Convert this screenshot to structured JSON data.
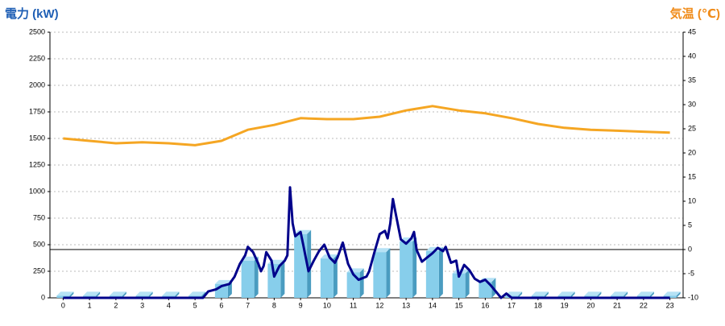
{
  "chart_data": {
    "type": "combo",
    "title": "電力 (kW)",
    "y2_title": "気温 (℃)",
    "xlim": [
      -0.5,
      23.5
    ],
    "xticks": [
      0,
      1,
      2,
      3,
      4,
      5,
      6,
      7,
      8,
      9,
      10,
      11,
      12,
      13,
      14,
      15,
      16,
      17,
      18,
      19,
      20,
      21,
      22,
      23
    ],
    "ylim": [
      0,
      2500
    ],
    "yticks": [
      0,
      250,
      500,
      750,
      1000,
      1250,
      1500,
      1750,
      2000,
      2250,
      2500
    ],
    "y2lim": [
      -10,
      45
    ],
    "y2ticks": [
      -10,
      -5,
      0,
      5,
      10,
      15,
      20,
      25,
      30,
      35,
      40,
      45
    ],
    "grid": true,
    "series": [
      {
        "type": "bar",
        "color": "#87ceeb",
        "values": [
          20,
          20,
          20,
          20,
          20,
          20,
          130,
          350,
          320,
          600,
          370,
          240,
          430,
          530,
          440,
          230,
          150,
          20,
          20,
          20,
          20,
          20,
          20,
          20
        ]
      },
      {
        "type": "line",
        "color": "#00008b",
        "x": [
          0,
          5.3,
          5.5,
          5.8,
          6,
          6.3,
          6.5,
          6.7,
          6.9,
          7.0,
          7.2,
          7.4,
          7.5,
          7.6,
          7.7,
          7.9,
          8.0,
          8.2,
          8.4,
          8.5,
          8.6,
          8.7,
          8.8,
          9.0,
          9.1,
          9.3,
          9.5,
          9.7,
          9.9,
          10.1,
          10.3,
          10.4,
          10.6,
          10.8,
          11.0,
          11.2,
          11.4,
          11.5,
          11.6,
          11.8,
          12.0,
          12.2,
          12.3,
          12.4,
          12.5,
          12.6,
          12.8,
          13.0,
          13.2,
          13.3,
          13.4,
          13.6,
          13.8,
          14.0,
          14.2,
          14.4,
          14.5,
          14.7,
          14.9,
          15.0,
          15.2,
          15.4,
          15.6,
          15.8,
          16.0,
          16.2,
          16.4,
          16.6,
          16.8,
          17.0,
          23
        ],
        "values": [
          0,
          0,
          60,
          80,
          110,
          130,
          200,
          320,
          400,
          480,
          430,
          320,
          250,
          300,
          430,
          350,
          200,
          300,
          350,
          400,
          1040,
          700,
          580,
          620,
          500,
          250,
          350,
          440,
          500,
          380,
          330,
          380,
          520,
          320,
          220,
          170,
          190,
          200,
          250,
          430,
          600,
          630,
          560,
          700,
          930,
          800,
          550,
          510,
          560,
          620,
          450,
          340,
          380,
          420,
          470,
          440,
          480,
          330,
          350,
          200,
          310,
          260,
          180,
          150,
          170,
          120,
          60,
          0,
          40,
          0,
          0
        ]
      },
      {
        "type": "line",
        "axis": "y2",
        "color": "#f5a623",
        "values": [
          23,
          22.5,
          22,
          22.2,
          22,
          21.6,
          22.5,
          24.8,
          25.8,
          27.2,
          27,
          27,
          27.5,
          28.8,
          29.7,
          28.8,
          28.2,
          27.2,
          26,
          25.2,
          24.8,
          24.6,
          24.4,
          24.2
        ]
      }
    ]
  }
}
